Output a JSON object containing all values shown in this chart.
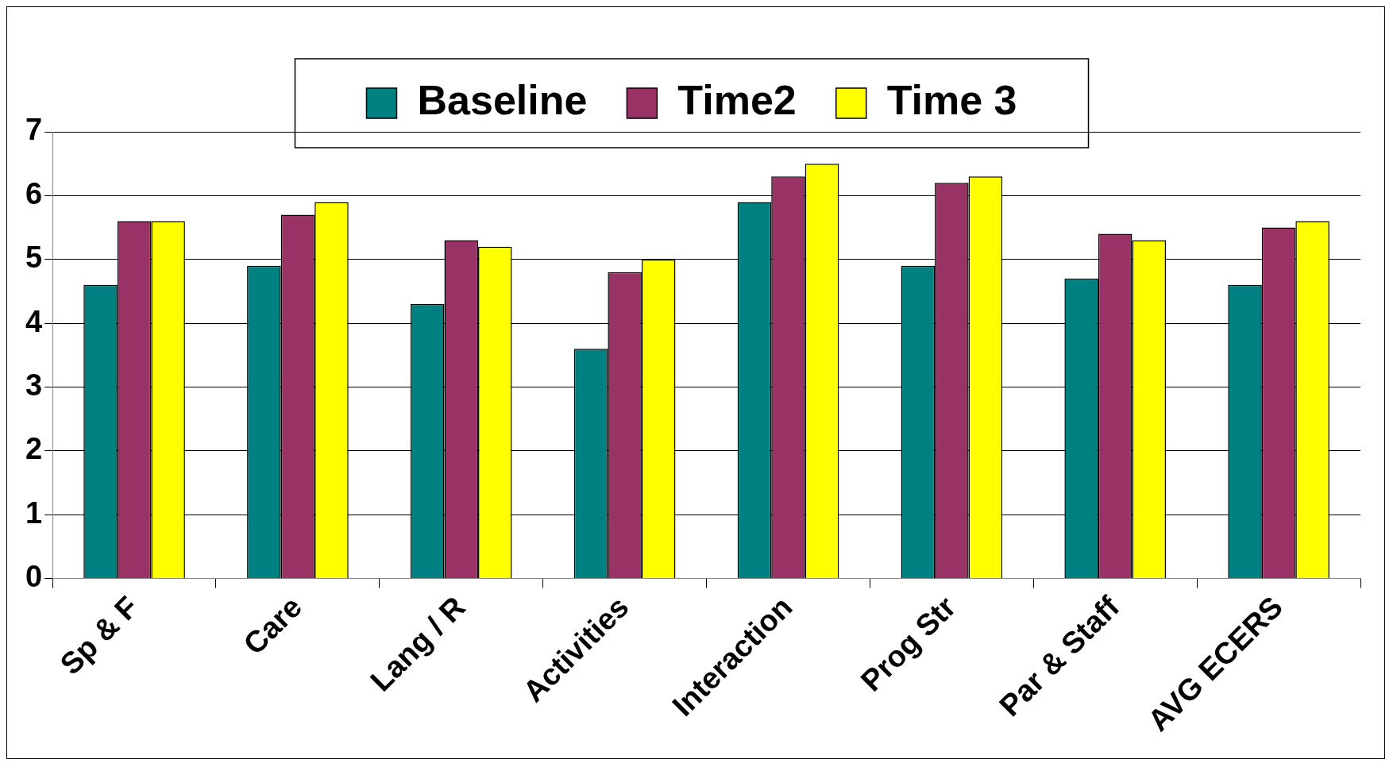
{
  "chart_data": {
    "type": "bar",
    "categories": [
      "Sp & F",
      "Care",
      "Lang / R",
      "Activities",
      "Interaction",
      "Prog Str",
      "Par & Staff",
      "AVG ECERS"
    ],
    "series": [
      {
        "name": "Baseline",
        "color": "#008080",
        "values": [
          4.6,
          4.9,
          4.3,
          3.6,
          5.9,
          4.9,
          4.7,
          4.6
        ]
      },
      {
        "name": "Time2",
        "color": "#993366",
        "values": [
          5.6,
          5.7,
          5.3,
          4.8,
          6.3,
          6.2,
          5.4,
          5.5
        ]
      },
      {
        "name": "Time 3",
        "color": "#ffff00",
        "values": [
          5.6,
          5.9,
          5.2,
          5.0,
          6.5,
          6.3,
          5.3,
          5.6
        ]
      }
    ],
    "ylim": [
      0,
      7
    ],
    "yticks": [
      0,
      1,
      2,
      3,
      4,
      5,
      6,
      7
    ],
    "grid": "y",
    "legend": "top"
  }
}
